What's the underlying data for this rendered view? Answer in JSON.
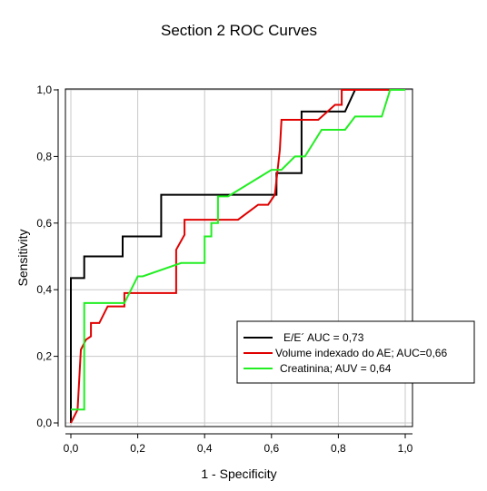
{
  "chart_data": {
    "type": "line",
    "title": "Section 2 ROC Curves",
    "xlabel": "1 - Specificity",
    "ylabel": "Sensitivity",
    "xlim": [
      0,
      1
    ],
    "ylim": [
      0,
      1
    ],
    "xticks": [
      "0,0",
      "0,2",
      "0,4",
      "0,6",
      "0,8",
      "1,0"
    ],
    "yticks": [
      "0,0",
      "0,2",
      "0,4",
      "0,6",
      "0,8",
      "1,0"
    ],
    "grid": true,
    "legend_position": "bottom-right",
    "series": [
      {
        "name": "E/E´ AUC = 0,73",
        "color": "#000000",
        "points": [
          [
            0,
            0
          ],
          [
            0,
            0.435
          ],
          [
            0.04,
            0.435
          ],
          [
            0.04,
            0.5
          ],
          [
            0.155,
            0.5
          ],
          [
            0.155,
            0.56
          ],
          [
            0.27,
            0.56
          ],
          [
            0.27,
            0.685
          ],
          [
            0.615,
            0.685
          ],
          [
            0.615,
            0.75
          ],
          [
            0.69,
            0.75
          ],
          [
            0.69,
            0.935
          ],
          [
            0.82,
            0.935
          ],
          [
            0.85,
            1
          ],
          [
            0.96,
            1
          ]
        ]
      },
      {
        "name": "Volume indexado do AE; AUC=0,66",
        "color": "#e00000",
        "points": [
          [
            0,
            0
          ],
          [
            0.02,
            0.04
          ],
          [
            0.03,
            0.22
          ],
          [
            0.045,
            0.25
          ],
          [
            0.06,
            0.26
          ],
          [
            0.06,
            0.3
          ],
          [
            0.085,
            0.3
          ],
          [
            0.11,
            0.35
          ],
          [
            0.16,
            0.35
          ],
          [
            0.16,
            0.39
          ],
          [
            0.315,
            0.39
          ],
          [
            0.315,
            0.52
          ],
          [
            0.34,
            0.565
          ],
          [
            0.34,
            0.61
          ],
          [
            0.5,
            0.61
          ],
          [
            0.56,
            0.655
          ],
          [
            0.59,
            0.655
          ],
          [
            0.61,
            0.685
          ],
          [
            0.625,
            0.82
          ],
          [
            0.63,
            0.91
          ],
          [
            0.74,
            0.91
          ],
          [
            0.79,
            0.955
          ],
          [
            0.81,
            0.955
          ],
          [
            0.81,
            1
          ],
          [
            0.96,
            1
          ]
        ]
      },
      {
        "name": "Creatinina; AUV = 0,64",
        "color": "#22ee22",
        "points": [
          [
            0,
            0.04
          ],
          [
            0.04,
            0.04
          ],
          [
            0.04,
            0.36
          ],
          [
            0.16,
            0.36
          ],
          [
            0.2,
            0.44
          ],
          [
            0.215,
            0.44
          ],
          [
            0.33,
            0.48
          ],
          [
            0.4,
            0.48
          ],
          [
            0.4,
            0.56
          ],
          [
            0.42,
            0.56
          ],
          [
            0.42,
            0.6
          ],
          [
            0.44,
            0.6
          ],
          [
            0.44,
            0.68
          ],
          [
            0.47,
            0.68
          ],
          [
            0.6,
            0.76
          ],
          [
            0.63,
            0.76
          ],
          [
            0.67,
            0.8
          ],
          [
            0.7,
            0.8
          ],
          [
            0.75,
            0.88
          ],
          [
            0.82,
            0.88
          ],
          [
            0.85,
            0.92
          ],
          [
            0.93,
            0.92
          ],
          [
            0.955,
            1
          ],
          [
            1.0,
            1
          ]
        ]
      }
    ]
  }
}
